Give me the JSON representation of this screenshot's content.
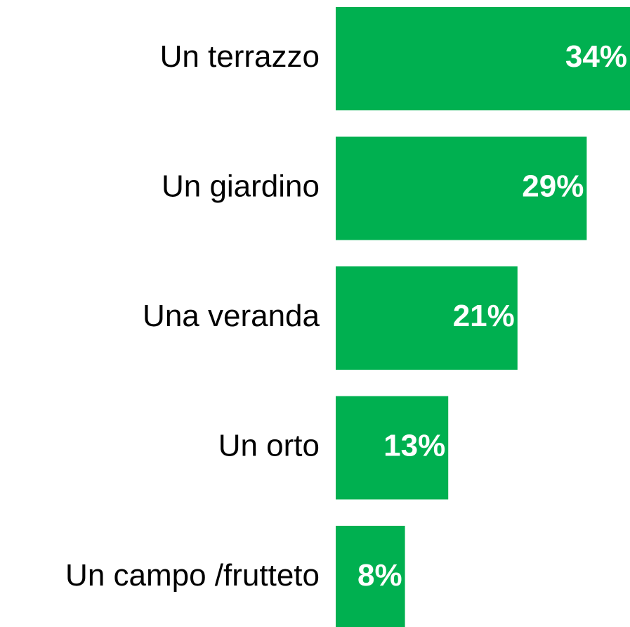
{
  "chart_data": {
    "type": "bar",
    "orientation": "horizontal",
    "categories": [
      "Un terrazzo",
      "Un giardino",
      "Una veranda",
      "Un orto",
      "Un campo /frutteto"
    ],
    "values": [
      34,
      29,
      21,
      13,
      8
    ],
    "value_labels": [
      "34%",
      "29%",
      "21%",
      "13%",
      "8%"
    ],
    "color": "#00b050"
  }
}
